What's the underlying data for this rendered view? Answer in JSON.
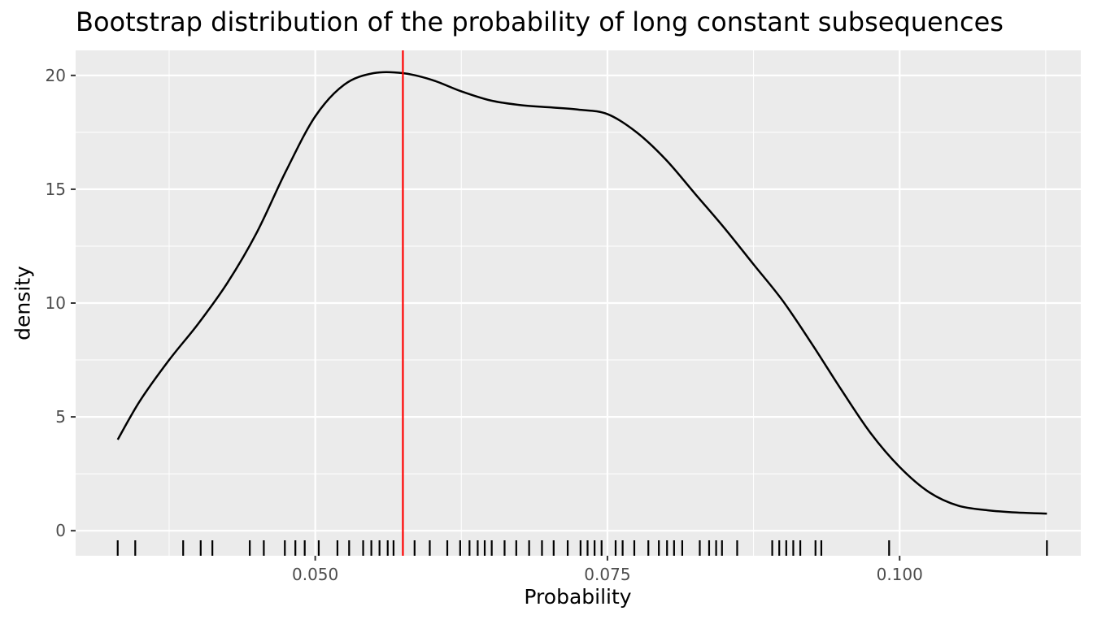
{
  "chart_data": {
    "type": "area",
    "title": "Bootstrap distribution of the probability of long constant subsequences",
    "xlabel": "Probability",
    "ylabel": "density",
    "xlim": [
      0.0295,
      0.1155
    ],
    "ylim": [
      -1.1,
      21.1
    ],
    "x_ticks": [
      0.05,
      0.075,
      0.1
    ],
    "x_tick_labels": [
      "0.050",
      "0.075",
      "0.100"
    ],
    "y_ticks": [
      0,
      5,
      10,
      15,
      20
    ],
    "y_tick_labels": [
      "0",
      "5",
      "10",
      "15",
      "20"
    ],
    "grid": true,
    "reference_line": {
      "x": 0.0575,
      "color": "#ff0000"
    },
    "density_curve": {
      "x": [
        0.0331,
        0.035,
        0.0375,
        0.04,
        0.0425,
        0.045,
        0.0475,
        0.05,
        0.0525,
        0.055,
        0.0575,
        0.06,
        0.0625,
        0.065,
        0.0675,
        0.07,
        0.0725,
        0.075,
        0.0775,
        0.08,
        0.0825,
        0.085,
        0.0875,
        0.09,
        0.0925,
        0.095,
        0.0975,
        0.1,
        0.1025,
        0.105,
        0.1075,
        0.11,
        0.1126
      ],
      "y": [
        4.0,
        5.7,
        7.5,
        9.1,
        10.9,
        13.1,
        15.8,
        18.2,
        19.6,
        20.1,
        20.1,
        19.8,
        19.3,
        18.9,
        18.7,
        18.6,
        18.5,
        18.3,
        17.5,
        16.3,
        14.8,
        13.3,
        11.7,
        10.1,
        8.2,
        6.2,
        4.3,
        2.8,
        1.7,
        1.1,
        0.9,
        0.8,
        0.75
      ]
    },
    "rug": [
      0.0331,
      0.0346,
      0.0387,
      0.0402,
      0.0412,
      0.0444,
      0.0456,
      0.0474,
      0.0483,
      0.0491,
      0.0503,
      0.0519,
      0.0529,
      0.0541,
      0.0548,
      0.0555,
      0.0562,
      0.0567,
      0.0585,
      0.0598,
      0.0613,
      0.0624,
      0.0632,
      0.0639,
      0.0645,
      0.0651,
      0.0662,
      0.0672,
      0.0683,
      0.0694,
      0.0704,
      0.0716,
      0.0727,
      0.0733,
      0.0739,
      0.0745,
      0.0757,
      0.0763,
      0.0773,
      0.0785,
      0.0794,
      0.0801,
      0.0807,
      0.0814,
      0.0829,
      0.0837,
      0.0843,
      0.0848,
      0.0861,
      0.0891,
      0.0897,
      0.0903,
      0.0909,
      0.0915,
      0.0928,
      0.0933,
      0.0991,
      0.1126
    ],
    "colors": {
      "panel": "#ebebeb",
      "grid": "#ffffff",
      "curve": "#000000",
      "reference": "#ff0000",
      "axis_text": "#4d4d4d"
    }
  }
}
